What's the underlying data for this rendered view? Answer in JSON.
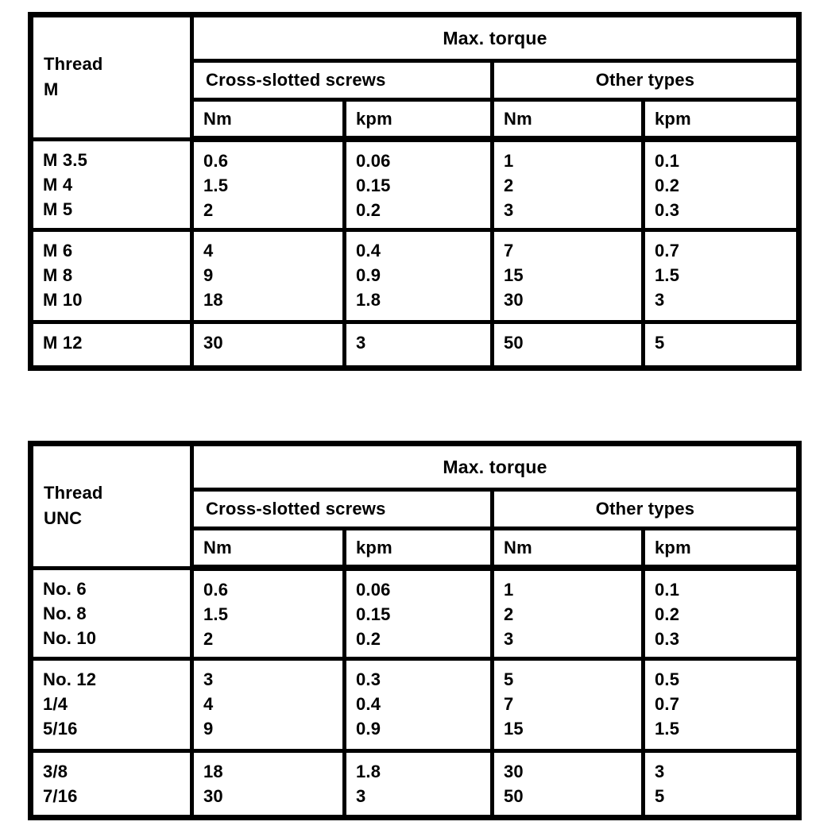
{
  "page": {
    "background": "#ffffff",
    "text_color": "#000000",
    "description": "Scanned manual page with two max-torque specification tables"
  },
  "tables": [
    {
      "id": "metric",
      "thread_header": [
        "Thread",
        "M"
      ],
      "max_torque": "Max. torque",
      "group_headers": [
        "Cross-slotted screws",
        "Other types"
      ],
      "unit_headers": [
        "Nm",
        "kpm",
        "Nm",
        "kpm"
      ],
      "groups": [
        {
          "threads": [
            "M 3.5",
            "M 4",
            "M 5"
          ],
          "cross_nm": [
            "0.6",
            "1.5",
            "2"
          ],
          "cross_kpm": [
            "0.06",
            "0.15",
            "0.2"
          ],
          "other_nm": [
            "1",
            "2",
            "3"
          ],
          "other_kpm": [
            "0.1",
            "0.2",
            "0.3"
          ]
        },
        {
          "threads": [
            "M 6",
            "M 8",
            "M 10"
          ],
          "cross_nm": [
            "4",
            "9",
            "18"
          ],
          "cross_kpm": [
            "0.4",
            "0.9",
            "1.8"
          ],
          "other_nm": [
            "7",
            "15",
            "30"
          ],
          "other_kpm": [
            "0.7",
            "1.5",
            "3"
          ]
        },
        {
          "threads": [
            "M 12"
          ],
          "cross_nm": [
            "30"
          ],
          "cross_kpm": [
            "3"
          ],
          "other_nm": [
            "50"
          ],
          "other_kpm": [
            "5"
          ]
        }
      ]
    },
    {
      "id": "unc",
      "thread_header": [
        "Thread",
        "UNC"
      ],
      "max_torque": "Max. torque",
      "group_headers": [
        "Cross-slotted screws",
        "Other types"
      ],
      "unit_headers": [
        "Nm",
        "kpm",
        "Nm",
        "kpm"
      ],
      "groups": [
        {
          "threads": [
            "No. 6",
            "No. 8",
            "No. 10"
          ],
          "cross_nm": [
            "0.6",
            "1.5",
            "2"
          ],
          "cross_kpm": [
            "0.06",
            "0.15",
            "0.2"
          ],
          "other_nm": [
            "1",
            "2",
            "3"
          ],
          "other_kpm": [
            "0.1",
            "0.2",
            "0.3"
          ]
        },
        {
          "threads": [
            "No. 12",
            "1/4",
            "5/16"
          ],
          "cross_nm": [
            "3",
            "4",
            "9"
          ],
          "cross_kpm": [
            "0.3",
            "0.4",
            "0.9"
          ],
          "other_nm": [
            "5",
            "7",
            "15"
          ],
          "other_kpm": [
            "0.5",
            "0.7",
            "1.5"
          ]
        },
        {
          "threads": [
            "3/8",
            "7/16"
          ],
          "cross_nm": [
            "18",
            "30"
          ],
          "cross_kpm": [
            "1.8",
            "3"
          ],
          "other_nm": [
            "30",
            "50"
          ],
          "other_kpm": [
            "3",
            "5"
          ]
        }
      ]
    }
  ]
}
